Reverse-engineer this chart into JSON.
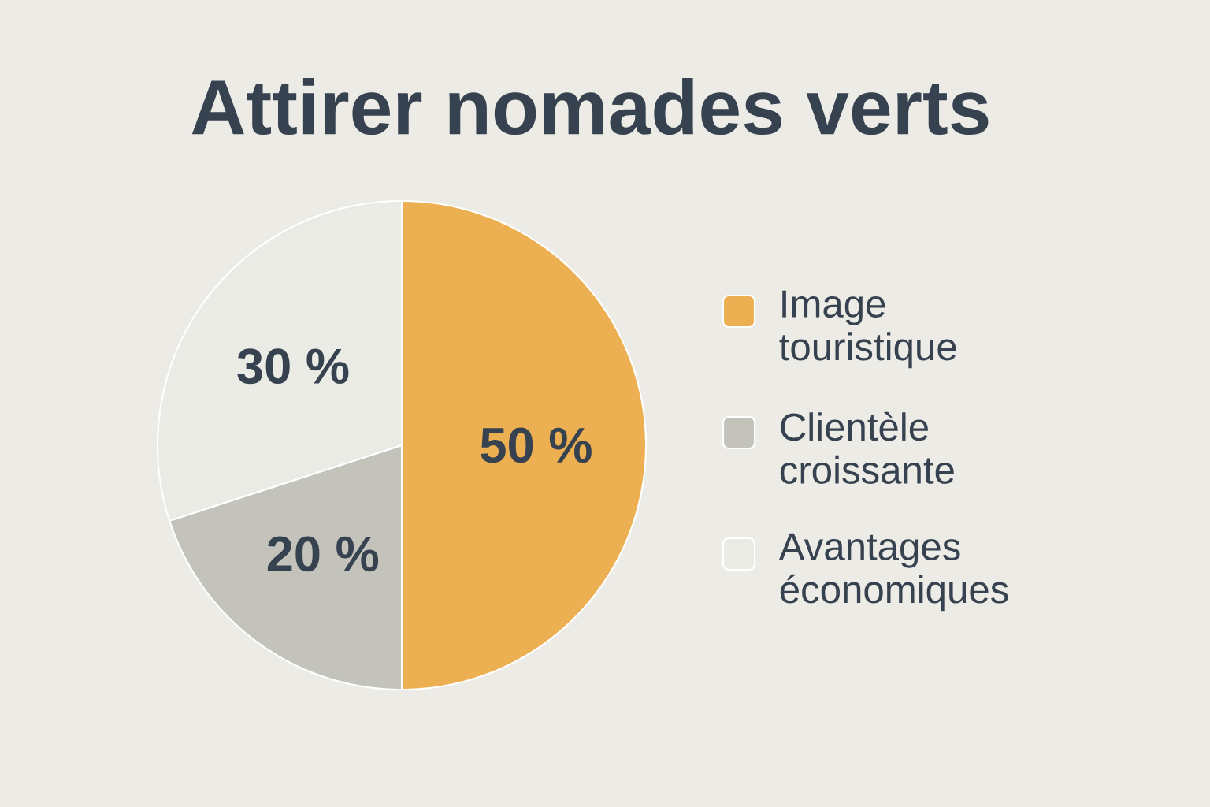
{
  "chart_data": {
    "type": "pie",
    "title": "Attirer nomades verts",
    "categories": [
      "Image touristique",
      "Clientèle croissante",
      "Avantages économiques"
    ],
    "values": [
      50,
      20,
      30
    ],
    "colors": [
      "#ecb052",
      "#c3c3bc",
      "#ebebe6"
    ],
    "value_labels": [
      "50 %",
      "20 %",
      "30 %"
    ],
    "legend": "right"
  }
}
